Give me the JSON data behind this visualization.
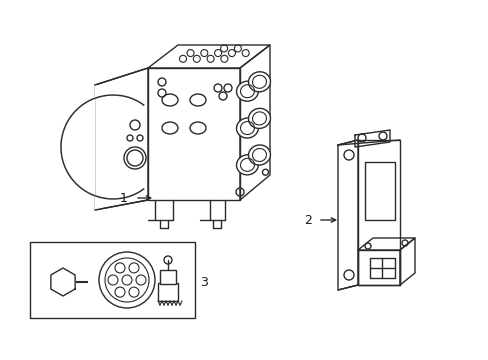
{
  "background_color": "#ffffff",
  "line_color": "#2a2a2a",
  "line_width": 1.0,
  "label_color": "#1a1a1a",
  "label_fontsize": 9,
  "figsize": [
    4.89,
    3.6
  ],
  "dpi": 100
}
